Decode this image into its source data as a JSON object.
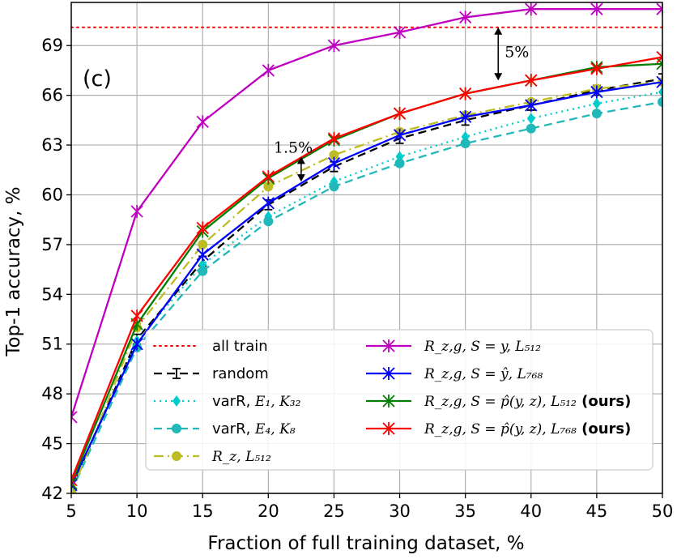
{
  "chart_data": {
    "type": "line",
    "panel_label": "(c)",
    "xlabel": "Fraction of full training dataset, %",
    "ylabel": "Top-1 accuracy, %",
    "xlim": [
      5,
      50
    ],
    "ylim": [
      42,
      71.6
    ],
    "xticks": [
      5,
      10,
      15,
      20,
      25,
      30,
      35,
      40,
      45,
      50
    ],
    "yticks": [
      42,
      45,
      48,
      51,
      54,
      57,
      60,
      63,
      66,
      69
    ],
    "grid": true,
    "legend_position": "lower-right",
    "x": [
      5,
      10,
      15,
      20,
      25,
      30,
      35,
      40,
      45,
      50
    ],
    "reference_line": {
      "name": "all train",
      "value": 70.1,
      "color": "#ff0000"
    },
    "series": [
      {
        "name": "random",
        "color": "#000000",
        "dash": "dashed",
        "marker": "errorbar",
        "values": [
          42.3,
          51.3,
          56.0,
          59.4,
          61.7,
          63.4,
          64.5,
          65.4,
          66.3,
          67.0
        ]
      },
      {
        "name": "varR, E1, K32",
        "label_text": "varR,",
        "label_math": "E₁, K₃₂",
        "color": "#00cccc",
        "dash": "dotted",
        "marker": "diamond",
        "values": [
          42.2,
          51.2,
          55.8,
          58.7,
          60.8,
          62.3,
          63.5,
          64.6,
          65.5,
          66.2
        ]
      },
      {
        "name": "varR, E4, K8",
        "label_text": "varR,",
        "label_math": "E₄, K₈",
        "color": "#20b8b8",
        "dash": "dashed",
        "marker": "circle",
        "values": [
          42.1,
          50.8,
          55.4,
          58.4,
          60.5,
          61.9,
          63.1,
          64.0,
          64.9,
          65.6
        ]
      },
      {
        "name": "Rz, L512",
        "label_text": "",
        "label_math": "R_z, L₅₁₂",
        "color": "#bcbd22",
        "dash": "dashdot",
        "marker": "circle",
        "values": [
          42.0,
          52.0,
          57.0,
          60.5,
          62.4,
          63.8,
          64.8,
          65.6,
          66.4,
          66.8
        ]
      },
      {
        "name": "Rz,g, S=y, L512",
        "label_math": "R_z,g, S = y, L₅₁₂",
        "color": "#c000c0",
        "dash": "solid",
        "marker": "x",
        "values": [
          46.6,
          59.0,
          64.4,
          67.5,
          69.0,
          69.8,
          70.7,
          71.2,
          71.2,
          71.2
        ]
      },
      {
        "name": "Rz,g, S=ŷ, L768",
        "label_math": "R_z,g, S = ŷ, L₇₆₈",
        "color": "#0000ff",
        "dash": "solid",
        "marker": "x",
        "values": [
          42.5,
          51.0,
          56.4,
          59.5,
          61.9,
          63.6,
          64.7,
          65.4,
          66.2,
          66.8
        ]
      },
      {
        "name": "Rz,g, S=p̂(y,z), L512 (ours)",
        "label_math": "R_z,g, S = p̂(y, z), L₅₁₂",
        "label_bold": "(ours)",
        "color": "#008000",
        "dash": "solid",
        "marker": "x",
        "values": [
          42.6,
          52.2,
          57.8,
          61.0,
          63.3,
          64.9,
          66.1,
          66.9,
          67.7,
          67.9
        ]
      },
      {
        "name": "Rz,g, S=p̂(y,z), L768 (ours)",
        "label_math": "R_z,g, S = p̂(y, z), L₇₆₈",
        "label_bold": "(ours)",
        "color": "#ff0000",
        "dash": "solid",
        "marker": "x",
        "values": [
          42.8,
          52.7,
          58.0,
          61.1,
          63.4,
          64.9,
          66.1,
          66.9,
          67.6,
          68.3
        ]
      }
    ],
    "annotations": [
      {
        "text": "5%",
        "x": 37.5,
        "y_from": 66.9,
        "y_to": 70.1
      },
      {
        "text": "1.5%",
        "x": 22.5,
        "y_from": 60.8,
        "y_to": 62.3
      }
    ]
  }
}
